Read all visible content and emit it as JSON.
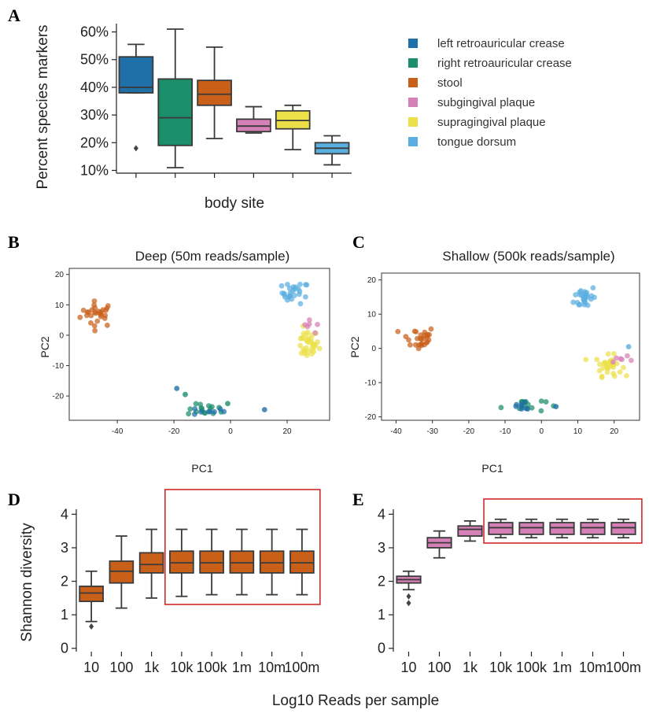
{
  "colors": {
    "left_retroauricular_crease": "#1f6fa8",
    "right_retroauricular_crease": "#1b8e6b",
    "stool": "#c9601a",
    "subgingival_plaque": "#d580b6",
    "supragingival_plaque": "#ece049",
    "tongue_dorsum": "#5aafe0",
    "highlight_box": "#d22a2a"
  },
  "chart_data": [
    {
      "panel": "A",
      "type": "box",
      "xlabel": "body site",
      "ylabel": "Percent species markers",
      "ylim": [
        9,
        63
      ],
      "yticks": [
        "10%",
        "20%",
        "30%",
        "40%",
        "50%",
        "60%"
      ],
      "ytick_values": [
        10,
        20,
        30,
        40,
        50,
        60
      ],
      "categories": [
        "left retroauricular crease",
        "right retroauricular crease",
        "stool",
        "subgingival plaque",
        "supragingival plaque",
        "tongue dorsum"
      ],
      "boxes": [
        {
          "category": "left retroauricular crease",
          "color": "#1f6fa8",
          "whisker_low": 38,
          "q1": 38,
          "median": 40,
          "q3": 51,
          "whisker_high": 55.5,
          "outliers": [
            18
          ]
        },
        {
          "category": "right retroauricular crease",
          "color": "#1b8e6b",
          "whisker_low": 11,
          "q1": 19,
          "median": 29,
          "q3": 43,
          "whisker_high": 61,
          "outliers": []
        },
        {
          "category": "stool",
          "color": "#c9601a",
          "whisker_low": 21.5,
          "q1": 33.5,
          "median": 37.5,
          "q3": 42.5,
          "whisker_high": 54.5,
          "outliers": []
        },
        {
          "category": "subgingival plaque",
          "color": "#d580b6",
          "whisker_low": 23.5,
          "q1": 24,
          "median": 26,
          "q3": 28.5,
          "whisker_high": 33,
          "outliers": []
        },
        {
          "category": "supragingival plaque",
          "color": "#ece049",
          "whisker_low": 17.5,
          "q1": 25,
          "median": 28,
          "q3": 31.5,
          "whisker_high": 33.5,
          "outliers": []
        },
        {
          "category": "tongue dorsum",
          "color": "#5aafe0",
          "whisker_low": 12,
          "q1": 16,
          "median": 18,
          "q3": 20,
          "whisker_high": 22.5,
          "outliers": []
        }
      ],
      "legend": [
        "left retroauricular crease",
        "right retroauricular crease",
        "stool",
        "subgingival plaque",
        "supragingival plaque",
        "tongue dorsum"
      ],
      "legend_position": "right"
    },
    {
      "panel": "B",
      "type": "scatter",
      "title": "Deep (50m reads/sample)",
      "xlabel": "PC1",
      "ylabel": "PC2",
      "xlim": [
        -57,
        35
      ],
      "ylim": [
        -28,
        22
      ],
      "xticks": [
        -40,
        -20,
        0,
        20
      ],
      "yticks": [
        20,
        10,
        0,
        -10,
        -20
      ],
      "clusters": [
        {
          "group": "stool",
          "color": "#c9601a",
          "center": [
            -47,
            7
          ],
          "spread": [
            5,
            3.5
          ],
          "n": 28
        },
        {
          "group": "tongue dorsum",
          "color": "#5aafe0",
          "center": [
            23,
            14
          ],
          "spread": [
            4,
            3
          ],
          "n": 26
        },
        {
          "group": "supragingival plaque",
          "color": "#ece049",
          "center": [
            27,
            -3
          ],
          "spread": [
            3.5,
            4
          ],
          "n": 34
        },
        {
          "group": "subgingival plaque",
          "color": "#d580b6",
          "center": [
            28,
            2
          ],
          "spread": [
            3,
            3
          ],
          "n": 6
        },
        {
          "group": "right retroauricular crease",
          "color": "#1b8e6b",
          "center": [
            -8,
            -24.5
          ],
          "spread": [
            6,
            1.5
          ],
          "n": 16
        },
        {
          "group": "left retroauricular crease",
          "color": "#1f6fa8",
          "center": [
            -8,
            -25
          ],
          "spread": [
            5,
            1.2
          ],
          "n": 8
        }
      ],
      "extra_points": [
        {
          "group": "left retroauricular crease",
          "color": "#1f6fa8",
          "x": 12,
          "y": -24.5
        },
        {
          "group": "left retroauricular crease",
          "color": "#1f6fa8",
          "x": -19,
          "y": -17.5
        },
        {
          "group": "right retroauricular crease",
          "color": "#1b8e6b",
          "x": -16,
          "y": -19.5
        },
        {
          "group": "right retroauricular crease",
          "color": "#1b8e6b",
          "x": -1,
          "y": -22.5
        }
      ]
    },
    {
      "panel": "C",
      "type": "scatter",
      "title": "Shallow (500k reads/sample)",
      "xlabel": "PC1",
      "ylabel": "PC2",
      "xlim": [
        -44,
        27
      ],
      "ylim": [
        -21,
        22
      ],
      "xticks": [
        -40,
        -30,
        -20,
        -10,
        0,
        10,
        20
      ],
      "yticks": [
        20,
        10,
        0,
        -10,
        -20
      ],
      "clusters": [
        {
          "group": "stool",
          "color": "#c9601a",
          "center": [
            -34,
            3
          ],
          "spread": [
            4,
            3
          ],
          "n": 28
        },
        {
          "group": "tongue dorsum",
          "color": "#5aafe0",
          "center": [
            12,
            15
          ],
          "spread": [
            2.5,
            3
          ],
          "n": 28
        },
        {
          "group": "supragingival plaque",
          "color": "#ece049",
          "center": [
            18.5,
            -5
          ],
          "spread": [
            3,
            2.5
          ],
          "n": 32
        },
        {
          "group": "subgingival plaque",
          "color": "#d580b6",
          "center": [
            22,
            -3
          ],
          "spread": [
            2.5,
            2
          ],
          "n": 6
        },
        {
          "group": "right retroauricular crease",
          "color": "#1b8e6b",
          "center": [
            -5,
            -16.5
          ],
          "spread": [
            5,
            1.8
          ],
          "n": 16
        },
        {
          "group": "left retroauricular crease",
          "color": "#1f6fa8",
          "center": [
            -5,
            -17
          ],
          "spread": [
            4,
            1.3
          ],
          "n": 8
        }
      ],
      "extra_points": [
        {
          "group": "left retroauricular crease",
          "color": "#1f6fa8",
          "x": 4,
          "y": -17
        },
        {
          "group": "tongue dorsum",
          "color": "#5aafe0",
          "x": 24,
          "y": 0.5
        }
      ]
    },
    {
      "panel": "D",
      "type": "box",
      "color": "#c9601a",
      "ylabel": "Shannon diversity",
      "ylim": [
        -0.1,
        4.15
      ],
      "yticks": [
        "0",
        "1",
        "2",
        "3",
        "4"
      ],
      "ytick_values": [
        0,
        1,
        2,
        3,
        4
      ],
      "categories": [
        "10",
        "100",
        "1k",
        "10k",
        "100k",
        "1m",
        "10m",
        "100m"
      ],
      "boxes": [
        {
          "category": "10",
          "whisker_low": 0.8,
          "q1": 1.4,
          "median": 1.65,
          "q3": 1.85,
          "whisker_high": 2.3,
          "outliers": [
            0.65
          ]
        },
        {
          "category": "100",
          "whisker_low": 1.2,
          "q1": 1.95,
          "median": 2.3,
          "q3": 2.6,
          "whisker_high": 3.35,
          "outliers": []
        },
        {
          "category": "1k",
          "whisker_low": 1.5,
          "q1": 2.25,
          "median": 2.5,
          "q3": 2.85,
          "whisker_high": 3.55,
          "outliers": []
        },
        {
          "category": "10k",
          "whisker_low": 1.55,
          "q1": 2.25,
          "median": 2.55,
          "q3": 2.9,
          "whisker_high": 3.55,
          "outliers": []
        },
        {
          "category": "100k",
          "whisker_low": 1.6,
          "q1": 2.25,
          "median": 2.55,
          "q3": 2.9,
          "whisker_high": 3.55,
          "outliers": []
        },
        {
          "category": "1m",
          "whisker_low": 1.6,
          "q1": 2.25,
          "median": 2.55,
          "q3": 2.9,
          "whisker_high": 3.55,
          "outliers": []
        },
        {
          "category": "10m",
          "whisker_low": 1.6,
          "q1": 2.25,
          "median": 2.55,
          "q3": 2.9,
          "whisker_high": 3.55,
          "outliers": []
        },
        {
          "category": "100m",
          "whisker_low": 1.6,
          "q1": 2.25,
          "median": 2.55,
          "q3": 2.9,
          "whisker_high": 3.55,
          "outliers": []
        }
      ],
      "highlight_categories": [
        "10k",
        "100m"
      ]
    },
    {
      "panel": "E",
      "type": "box",
      "color": "#d580b6",
      "ylim": [
        -0.1,
        4.15
      ],
      "yticks": [
        "0",
        "1",
        "2",
        "3",
        "4"
      ],
      "ytick_values": [
        0,
        1,
        2,
        3,
        4
      ],
      "categories": [
        "10",
        "100",
        "1k",
        "10k",
        "100k",
        "1m",
        "10m",
        "100m"
      ],
      "boxes": [
        {
          "category": "10",
          "whisker_low": 1.75,
          "q1": 1.95,
          "median": 2.05,
          "q3": 2.15,
          "whisker_high": 2.3,
          "outliers": [
            1.55,
            1.35
          ]
        },
        {
          "category": "100",
          "whisker_low": 2.7,
          "q1": 3.0,
          "median": 3.15,
          "q3": 3.3,
          "whisker_high": 3.5,
          "outliers": []
        },
        {
          "category": "1k",
          "whisker_low": 3.2,
          "q1": 3.35,
          "median": 3.55,
          "q3": 3.65,
          "whisker_high": 3.8,
          "outliers": []
        },
        {
          "category": "10k",
          "whisker_low": 3.3,
          "q1": 3.4,
          "median": 3.6,
          "q3": 3.75,
          "whisker_high": 3.85,
          "outliers": []
        },
        {
          "category": "100k",
          "whisker_low": 3.3,
          "q1": 3.4,
          "median": 3.6,
          "q3": 3.75,
          "whisker_high": 3.85,
          "outliers": []
        },
        {
          "category": "1m",
          "whisker_low": 3.3,
          "q1": 3.4,
          "median": 3.6,
          "q3": 3.75,
          "whisker_high": 3.85,
          "outliers": []
        },
        {
          "category": "10m",
          "whisker_low": 3.3,
          "q1": 3.4,
          "median": 3.6,
          "q3": 3.75,
          "whisker_high": 3.85,
          "outliers": []
        },
        {
          "category": "100m",
          "whisker_low": 3.3,
          "q1": 3.4,
          "median": 3.6,
          "q3": 3.75,
          "whisker_high": 3.85,
          "outliers": []
        }
      ],
      "highlight_categories": [
        "10k",
        "100m"
      ]
    }
  ],
  "shared_xlabel": "Log10 Reads per sample",
  "panel_letters": [
    "A",
    "B",
    "C",
    "D",
    "E"
  ]
}
